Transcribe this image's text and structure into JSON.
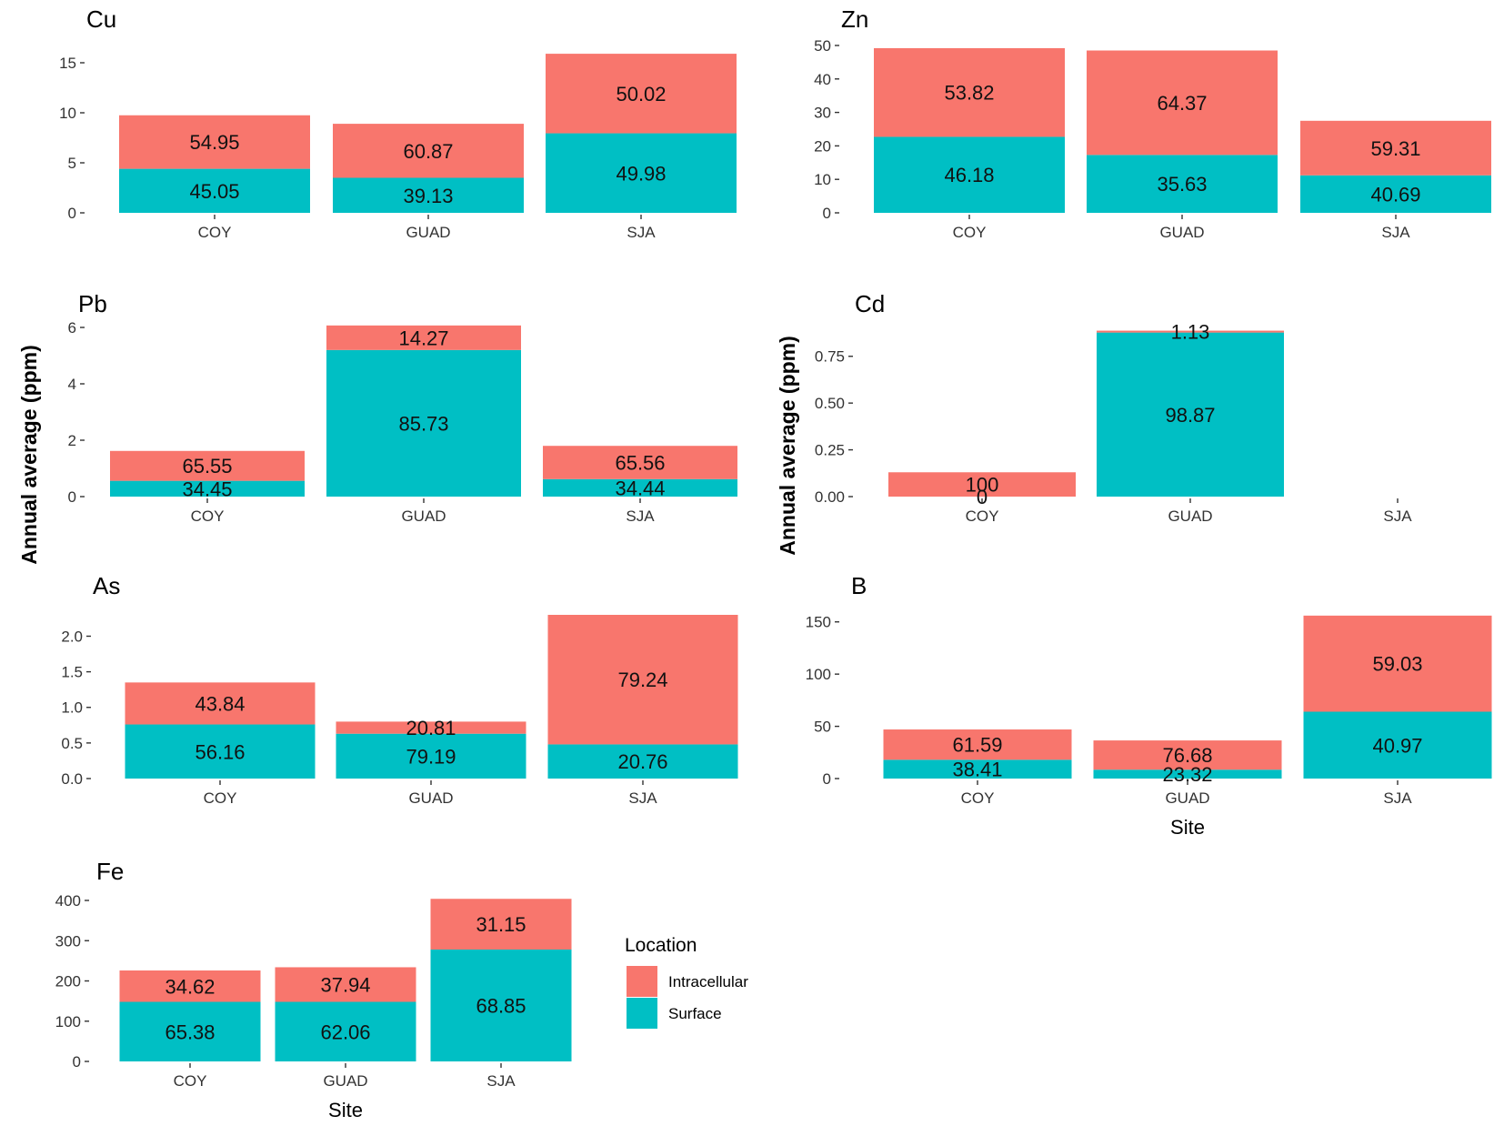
{
  "colors": {
    "Intracellular": "#F8766D",
    "Surface": "#00BFC4"
  },
  "y_axis_label": "Annual average (ppm)",
  "x_axis_label": "Site",
  "legend": {
    "title": "Location",
    "items": [
      {
        "name": "Intracellular",
        "color": "#F8766D"
      },
      {
        "name": "Surface",
        "color": "#00BFC4"
      }
    ]
  },
  "chart_data": [
    {
      "type": "bar",
      "stacked": true,
      "title": "Cu",
      "categories": [
        "COY",
        "GUAD",
        "SJA"
      ],
      "ylim": [
        0,
        16
      ],
      "yticks": [
        "0",
        "5",
        "10",
        "15"
      ],
      "ytick_values": [
        0,
        5,
        10,
        15
      ],
      "series": [
        {
          "name": "Surface",
          "values": [
            4.4,
            3.5,
            7.95
          ],
          "labels": [
            "45.05",
            "39.13",
            "49.98"
          ]
        },
        {
          "name": "Intracellular",
          "values": [
            5.35,
            5.4,
            7.95
          ],
          "labels": [
            "54.95",
            "60.87",
            "50.02"
          ]
        }
      ]
    },
    {
      "type": "bar",
      "stacked": true,
      "title": "Zn",
      "categories": [
        "COY",
        "GUAD",
        "SJA"
      ],
      "ylim": [
        0,
        50
      ],
      "yticks": [
        "0",
        "10",
        "20",
        "30",
        "40",
        "50"
      ],
      "ytick_values": [
        0,
        10,
        20,
        30,
        40,
        50
      ],
      "series": [
        {
          "name": "Surface",
          "values": [
            22.7,
            17.3,
            11.2
          ],
          "labels": [
            "46.18",
            "35.63",
            "40.69"
          ]
        },
        {
          "name": "Intracellular",
          "values": [
            26.5,
            31.2,
            16.3
          ],
          "labels": [
            "53.82",
            "64.37",
            "59.31"
          ]
        }
      ]
    },
    {
      "type": "bar",
      "stacked": true,
      "title": "Pb",
      "categories": [
        "COY",
        "GUAD",
        "SJA"
      ],
      "ylim": [
        0,
        6
      ],
      "yticks": [
        "0",
        "2",
        "4",
        "6"
      ],
      "ytick_values": [
        0,
        2,
        4,
        6
      ],
      "series": [
        {
          "name": "Surface",
          "values": [
            0.56,
            5.2,
            0.62
          ],
          "labels": [
            "34.45",
            "85.73",
            "34.44"
          ]
        },
        {
          "name": "Intracellular",
          "values": [
            1.06,
            0.87,
            1.18
          ],
          "labels": [
            "65.55",
            "14.27",
            "65.56"
          ]
        }
      ]
    },
    {
      "type": "bar",
      "stacked": true,
      "title": "Cd",
      "categories": [
        "COY",
        "GUAD",
        "SJA"
      ],
      "ylim": [
        0,
        0.88
      ],
      "yticks": [
        "0.00",
        "0.25",
        "0.50",
        "0.75"
      ],
      "ytick_values": [
        0,
        0.25,
        0.5,
        0.75
      ],
      "series": [
        {
          "name": "Surface",
          "values": [
            0,
            0.877,
            0
          ],
          "labels": [
            "0",
            "98.87",
            ""
          ]
        },
        {
          "name": "Intracellular",
          "values": [
            0.13,
            0.01,
            0
          ],
          "labels": [
            "100",
            "1.13",
            ""
          ]
        }
      ]
    },
    {
      "type": "bar",
      "stacked": true,
      "title": "As",
      "categories": [
        "COY",
        "GUAD",
        "SJA"
      ],
      "ylim": [
        0,
        2.3
      ],
      "yticks": [
        "0.0",
        "0.5",
        "1.0",
        "1.5",
        "2.0"
      ],
      "ytick_values": [
        0,
        0.5,
        1.0,
        1.5,
        2.0
      ],
      "series": [
        {
          "name": "Surface",
          "values": [
            0.76,
            0.63,
            0.48
          ],
          "labels": [
            "56.16",
            "79.19",
            "20.76"
          ]
        },
        {
          "name": "Intracellular",
          "values": [
            0.59,
            0.17,
            1.82
          ],
          "labels": [
            "43.84",
            "20.81",
            "79.24"
          ]
        }
      ]
    },
    {
      "type": "bar",
      "stacked": true,
      "title": "B",
      "categories": [
        "COY",
        "GUAD",
        "SJA"
      ],
      "ylim": [
        0,
        155
      ],
      "yticks": [
        "0",
        "50",
        "100",
        "150"
      ],
      "ytick_values": [
        0,
        50,
        100,
        150
      ],
      "series": [
        {
          "name": "Surface",
          "values": [
            18,
            8.5,
            64
          ],
          "labels": [
            "38.41",
            "23.32",
            "40.97"
          ]
        },
        {
          "name": "Intracellular",
          "values": [
            29,
            28,
            92
          ],
          "labels": [
            "61.59",
            "76.68",
            "59.03"
          ]
        }
      ]
    },
    {
      "type": "bar",
      "stacked": true,
      "title": "Fe",
      "categories": [
        "COY",
        "GUAD",
        "SJA"
      ],
      "ylim": [
        0,
        400
      ],
      "yticks": [
        "0",
        "100",
        "200",
        "300",
        "400"
      ],
      "ytick_values": [
        0,
        100,
        200,
        300,
        400
      ],
      "series": [
        {
          "name": "Surface",
          "values": [
            148,
            148,
            278
          ],
          "labels": [
            "65.38",
            "62.06",
            "68.85"
          ]
        },
        {
          "name": "Intracellular",
          "values": [
            78,
            86,
            126
          ],
          "labels": [
            "34.62",
            "37.94",
            "31.15"
          ]
        }
      ]
    }
  ]
}
